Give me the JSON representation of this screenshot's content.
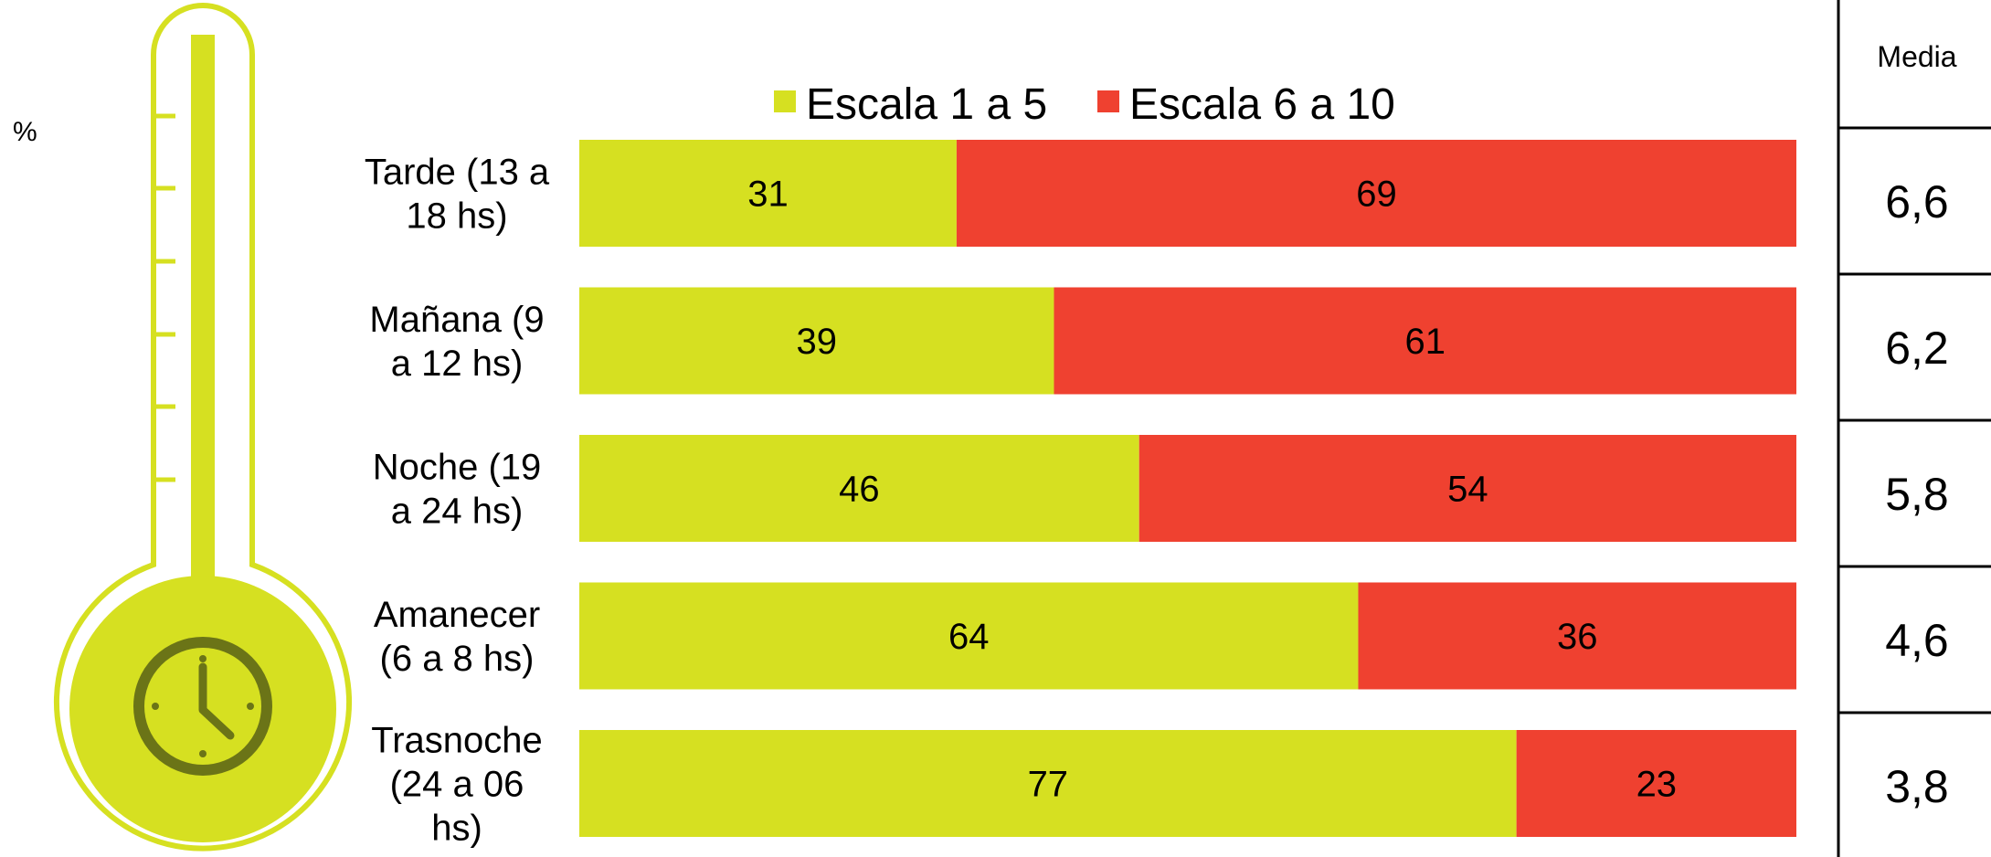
{
  "chart_data": {
    "type": "bar",
    "orientation": "horizontal",
    "stacked": true,
    "unit": "%",
    "legend_position": "top",
    "categories": [
      "Tarde (13 a 18 hs)",
      "Mañana (9 a 12 hs)",
      "Noche (19 a 24 hs)",
      "Amanecer (6 a 8 hs)",
      "Trasnoche (24 a 06 hs)"
    ],
    "category_lines": [
      [
        "Tarde (13 a",
        "18 hs)"
      ],
      [
        "Mañana (9",
        "a 12 hs)"
      ],
      [
        "Noche (19",
        "a 24 hs)"
      ],
      [
        "Amanecer",
        "(6 a 8 hs)"
      ],
      [
        "Trasnoche",
        "(24 a 06",
        "hs)"
      ]
    ],
    "series": [
      {
        "name": "Escala 1 a 5",
        "color": "#d6e021",
        "values": [
          31,
          39,
          46,
          64,
          77
        ]
      },
      {
        "name": "Escala 6 a 10",
        "color": "#ef4130",
        "values": [
          69,
          61,
          54,
          36,
          23
        ]
      }
    ],
    "xlim": [
      0,
      100
    ],
    "media_table": {
      "header": "Media",
      "values": [
        "6,6",
        "6,2",
        "5,8",
        "4,6",
        "3,8"
      ]
    }
  },
  "colors": {
    "thermometer_fill": "#d6e021",
    "thermometer_outline": "#d6e021",
    "clock": "#6b7417"
  },
  "icons": {
    "thermometer": "thermometer-icon",
    "clock": "clock-icon"
  }
}
